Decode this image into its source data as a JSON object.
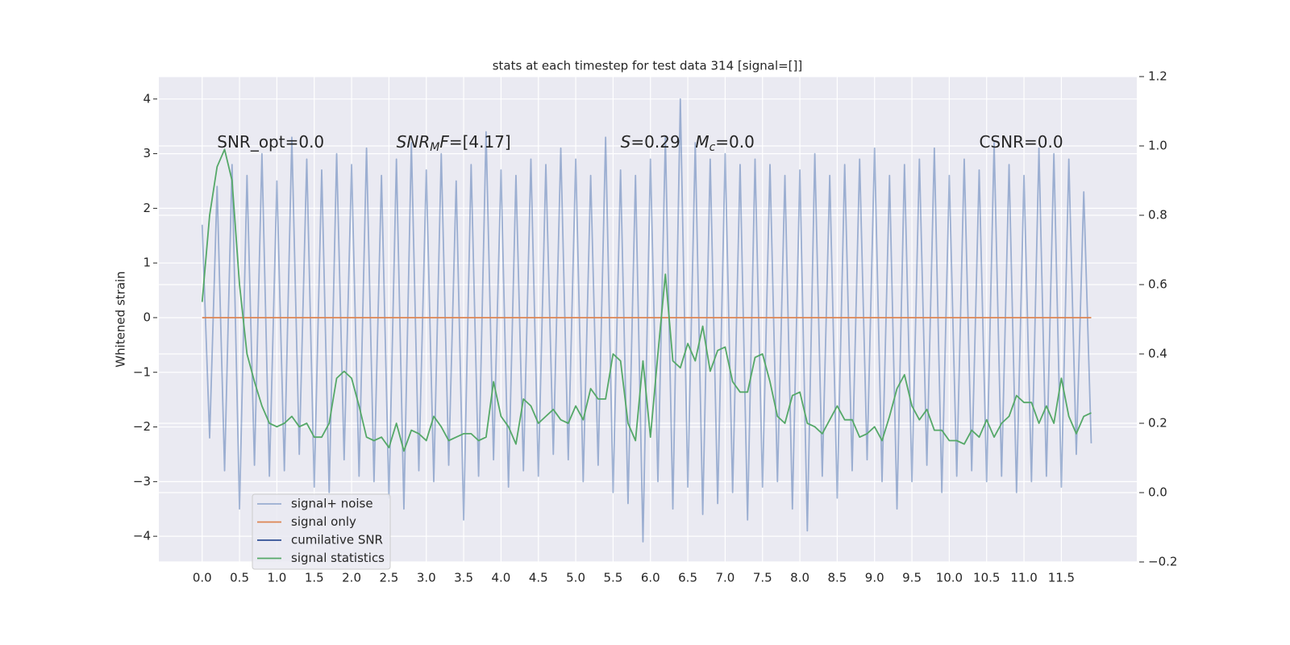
{
  "chart_data": {
    "type": "line",
    "title": "stats at each timestep for test data 314 [signal=[]]",
    "ylabel": "Whitened strain",
    "x": [
      0.0,
      0.1,
      0.2,
      0.3,
      0.4,
      0.5,
      0.6,
      0.7,
      0.8,
      0.9,
      1.0,
      1.1,
      1.2,
      1.3,
      1.4,
      1.5,
      1.6,
      1.7,
      1.8,
      1.9,
      2.0,
      2.1,
      2.2,
      2.3,
      2.4,
      2.5,
      2.6,
      2.7,
      2.8,
      2.9,
      3.0,
      3.1,
      3.2,
      3.3,
      3.4,
      3.5,
      3.6,
      3.7,
      3.8,
      3.9,
      4.0,
      4.1,
      4.2,
      4.3,
      4.4,
      4.5,
      4.6,
      4.7,
      4.8,
      4.9,
      5.0,
      5.1,
      5.2,
      5.3,
      5.4,
      5.5,
      5.6,
      5.7,
      5.8,
      5.9,
      6.0,
      6.1,
      6.2,
      6.3,
      6.4,
      6.5,
      6.6,
      6.7,
      6.8,
      6.9,
      7.0,
      7.1,
      7.2,
      7.3,
      7.4,
      7.5,
      7.6,
      7.7,
      7.8,
      7.9,
      8.0,
      8.1,
      8.2,
      8.3,
      8.4,
      8.5,
      8.6,
      8.7,
      8.8,
      8.9,
      9.0,
      9.1,
      9.2,
      9.3,
      9.4,
      9.5,
      9.6,
      9.7,
      9.8,
      9.9,
      10.0,
      10.1,
      10.2,
      10.3,
      10.4,
      10.5,
      10.6,
      10.7,
      10.8,
      10.9,
      11.0,
      11.1,
      11.2,
      11.3,
      11.4,
      11.5,
      11.6,
      11.7,
      11.8,
      11.9
    ],
    "series": [
      {
        "name": "signal+ noise",
        "color": "#4c72b0",
        "opacity": 0.5,
        "values": [
          1.7,
          -2.2,
          2.4,
          -2.8,
          2.8,
          -3.5,
          2.6,
          -2.7,
          3.0,
          -2.9,
          2.5,
          -2.8,
          3.3,
          -2.5,
          2.9,
          -3.1,
          2.7,
          -3.2,
          3.0,
          -2.6,
          2.8,
          -2.9,
          3.1,
          -3.0,
          2.6,
          -3.3,
          2.9,
          -3.5,
          3.2,
          -2.8,
          2.7,
          -3.0,
          3.0,
          -2.7,
          2.5,
          -3.7,
          2.8,
          -2.9,
          3.4,
          -2.6,
          2.7,
          -3.1,
          2.6,
          -2.8,
          2.9,
          -2.9,
          2.8,
          -2.5,
          3.1,
          -2.6,
          2.9,
          -3.0,
          2.6,
          -2.7,
          3.3,
          -3.2,
          2.7,
          -3.4,
          2.6,
          -4.1,
          2.9,
          -3.0,
          3.3,
          -3.5,
          4.0,
          -3.1,
          3.2,
          -3.6,
          2.9,
          -3.4,
          3.0,
          -3.2,
          2.8,
          -3.7,
          2.9,
          -3.1,
          2.8,
          -3.0,
          2.6,
          -3.5,
          2.7,
          -3.9,
          3.0,
          -2.9,
          2.6,
          -3.3,
          2.8,
          -2.8,
          2.9,
          -2.6,
          3.1,
          -3.0,
          2.6,
          -3.5,
          2.8,
          -3.0,
          2.9,
          -2.7,
          3.1,
          -3.2,
          2.6,
          -2.9,
          2.9,
          -2.8,
          2.7,
          -3.0,
          3.2,
          -2.9,
          2.8,
          -3.2,
          2.6,
          -3.0,
          3.1,
          -2.9,
          3.0,
          -3.1,
          2.9,
          -2.5,
          2.3,
          -2.3
        ]
      },
      {
        "name": "signal only",
        "color": "#dd8452",
        "opacity": 1,
        "values": [
          0,
          0,
          0,
          0,
          0,
          0,
          0,
          0,
          0,
          0,
          0,
          0,
          0,
          0,
          0,
          0,
          0,
          0,
          0,
          0,
          0,
          0,
          0,
          0,
          0,
          0,
          0,
          0,
          0,
          0,
          0,
          0,
          0,
          0,
          0,
          0,
          0,
          0,
          0,
          0,
          0,
          0,
          0,
          0,
          0,
          0,
          0,
          0,
          0,
          0,
          0,
          0,
          0,
          0,
          0,
          0,
          0,
          0,
          0,
          0,
          0,
          0,
          0,
          0,
          0,
          0,
          0,
          0,
          0,
          0,
          0,
          0,
          0,
          0,
          0,
          0,
          0,
          0,
          0,
          0,
          0,
          0,
          0,
          0,
          0,
          0,
          0,
          0,
          0,
          0,
          0,
          0,
          0,
          0,
          0,
          0,
          0,
          0,
          0,
          0,
          0,
          0,
          0,
          0,
          0,
          0,
          0,
          0,
          0,
          0,
          0,
          0,
          0,
          0,
          0,
          0,
          0,
          0,
          0,
          0
        ]
      },
      {
        "name": "cumilative SNR",
        "color": "#2f4f94",
        "opacity": 1
      },
      {
        "name": "signal statistics",
        "color": "#55a868",
        "opacity": 1,
        "axis": "y2",
        "values": [
          0.55,
          0.8,
          0.94,
          0.99,
          0.9,
          0.6,
          0.4,
          0.32,
          0.25,
          0.2,
          0.19,
          0.2,
          0.22,
          0.19,
          0.2,
          0.16,
          0.16,
          0.2,
          0.33,
          0.35,
          0.33,
          0.25,
          0.16,
          0.15,
          0.16,
          0.13,
          0.2,
          0.12,
          0.18,
          0.17,
          0.15,
          0.22,
          0.19,
          0.15,
          0.16,
          0.17,
          0.17,
          0.15,
          0.16,
          0.32,
          0.22,
          0.19,
          0.14,
          0.27,
          0.25,
          0.2,
          0.22,
          0.24,
          0.21,
          0.2,
          0.25,
          0.21,
          0.3,
          0.27,
          0.27,
          0.4,
          0.38,
          0.2,
          0.15,
          0.38,
          0.16,
          0.4,
          0.63,
          0.38,
          0.36,
          0.43,
          0.38,
          0.48,
          0.35,
          0.41,
          0.42,
          0.32,
          0.29,
          0.29,
          0.39,
          0.4,
          0.32,
          0.22,
          0.2,
          0.28,
          0.29,
          0.2,
          0.19,
          0.17,
          0.21,
          0.25,
          0.21,
          0.21,
          0.16,
          0.17,
          0.19,
          0.15,
          0.22,
          0.3,
          0.34,
          0.25,
          0.21,
          0.24,
          0.18,
          0.18,
          0.15,
          0.15,
          0.14,
          0.18,
          0.16,
          0.21,
          0.16,
          0.2,
          0.22,
          0.28,
          0.26,
          0.26,
          0.2,
          0.25,
          0.2,
          0.33,
          0.22,
          0.17,
          0.22,
          0.23
        ]
      }
    ],
    "xlim": [
      -0.58,
      12.51
    ],
    "xticks": [
      {
        "value": 0,
        "label": "0.0"
      },
      0.5,
      {
        "value": 1,
        "label": "1.0"
      },
      1.5,
      {
        "value": 2,
        "label": "2.0"
      },
      2.5,
      {
        "value": 3,
        "label": "3.0"
      },
      3.5,
      {
        "value": 4,
        "label": "4.0"
      },
      4.5,
      {
        "value": 5,
        "label": "5.0"
      },
      5.5,
      {
        "value": 6,
        "label": "6.0"
      },
      6.5,
      {
        "value": 7,
        "label": "7.0"
      },
      7.5,
      {
        "value": 8,
        "label": "8.0"
      },
      8.5,
      {
        "value": 9,
        "label": "9.0"
      },
      9.5,
      {
        "value": 10,
        "label": "10.0"
      },
      10.5,
      {
        "value": 11,
        "label": "11.0"
      },
      11.5
    ],
    "ylim": [
      -4.47,
      4.41
    ],
    "yticks": [
      {
        "value": -4,
        "label": "−4"
      },
      {
        "value": -3,
        "label": "−3"
      },
      {
        "value": -2,
        "label": "−2"
      },
      {
        "value": -1,
        "label": "−1"
      },
      0,
      1,
      2,
      3,
      4
    ],
    "y2lim": [
      -0.2,
      1.2
    ],
    "y2ticks": [
      {
        "value": -0.2,
        "label": "−0.2"
      },
      {
        "value": 0,
        "label": "0.0"
      },
      0.2,
      0.4,
      0.6,
      0.8,
      {
        "value": 1,
        "label": "1.0"
      },
      1.2
    ],
    "grid": true,
    "legend": "lower left",
    "annotations": [
      {
        "parts": [
          {
            "text": "SNR_opt=0.0",
            "style": "normal"
          }
        ]
      },
      {
        "parts": [
          {
            "text": "SNR",
            "style": "italic"
          },
          {
            "text": "M",
            "style": "sub"
          },
          {
            "text": "F",
            "style": "italic"
          },
          {
            "text": "=[4.17]",
            "style": "normal"
          }
        ]
      },
      {
        "parts": [
          {
            "text": "S",
            "style": "italic"
          },
          {
            "text": "=0.29",
            "style": "normal"
          }
        ]
      },
      {
        "parts": [
          {
            "text": "M",
            "style": "italic"
          },
          {
            "text": "c",
            "style": "sub"
          },
          {
            "text": "=0.0",
            "style": "normal"
          }
        ]
      },
      {
        "parts": [
          {
            "text": "CSNR=0.0",
            "style": "normal"
          }
        ]
      }
    ]
  }
}
